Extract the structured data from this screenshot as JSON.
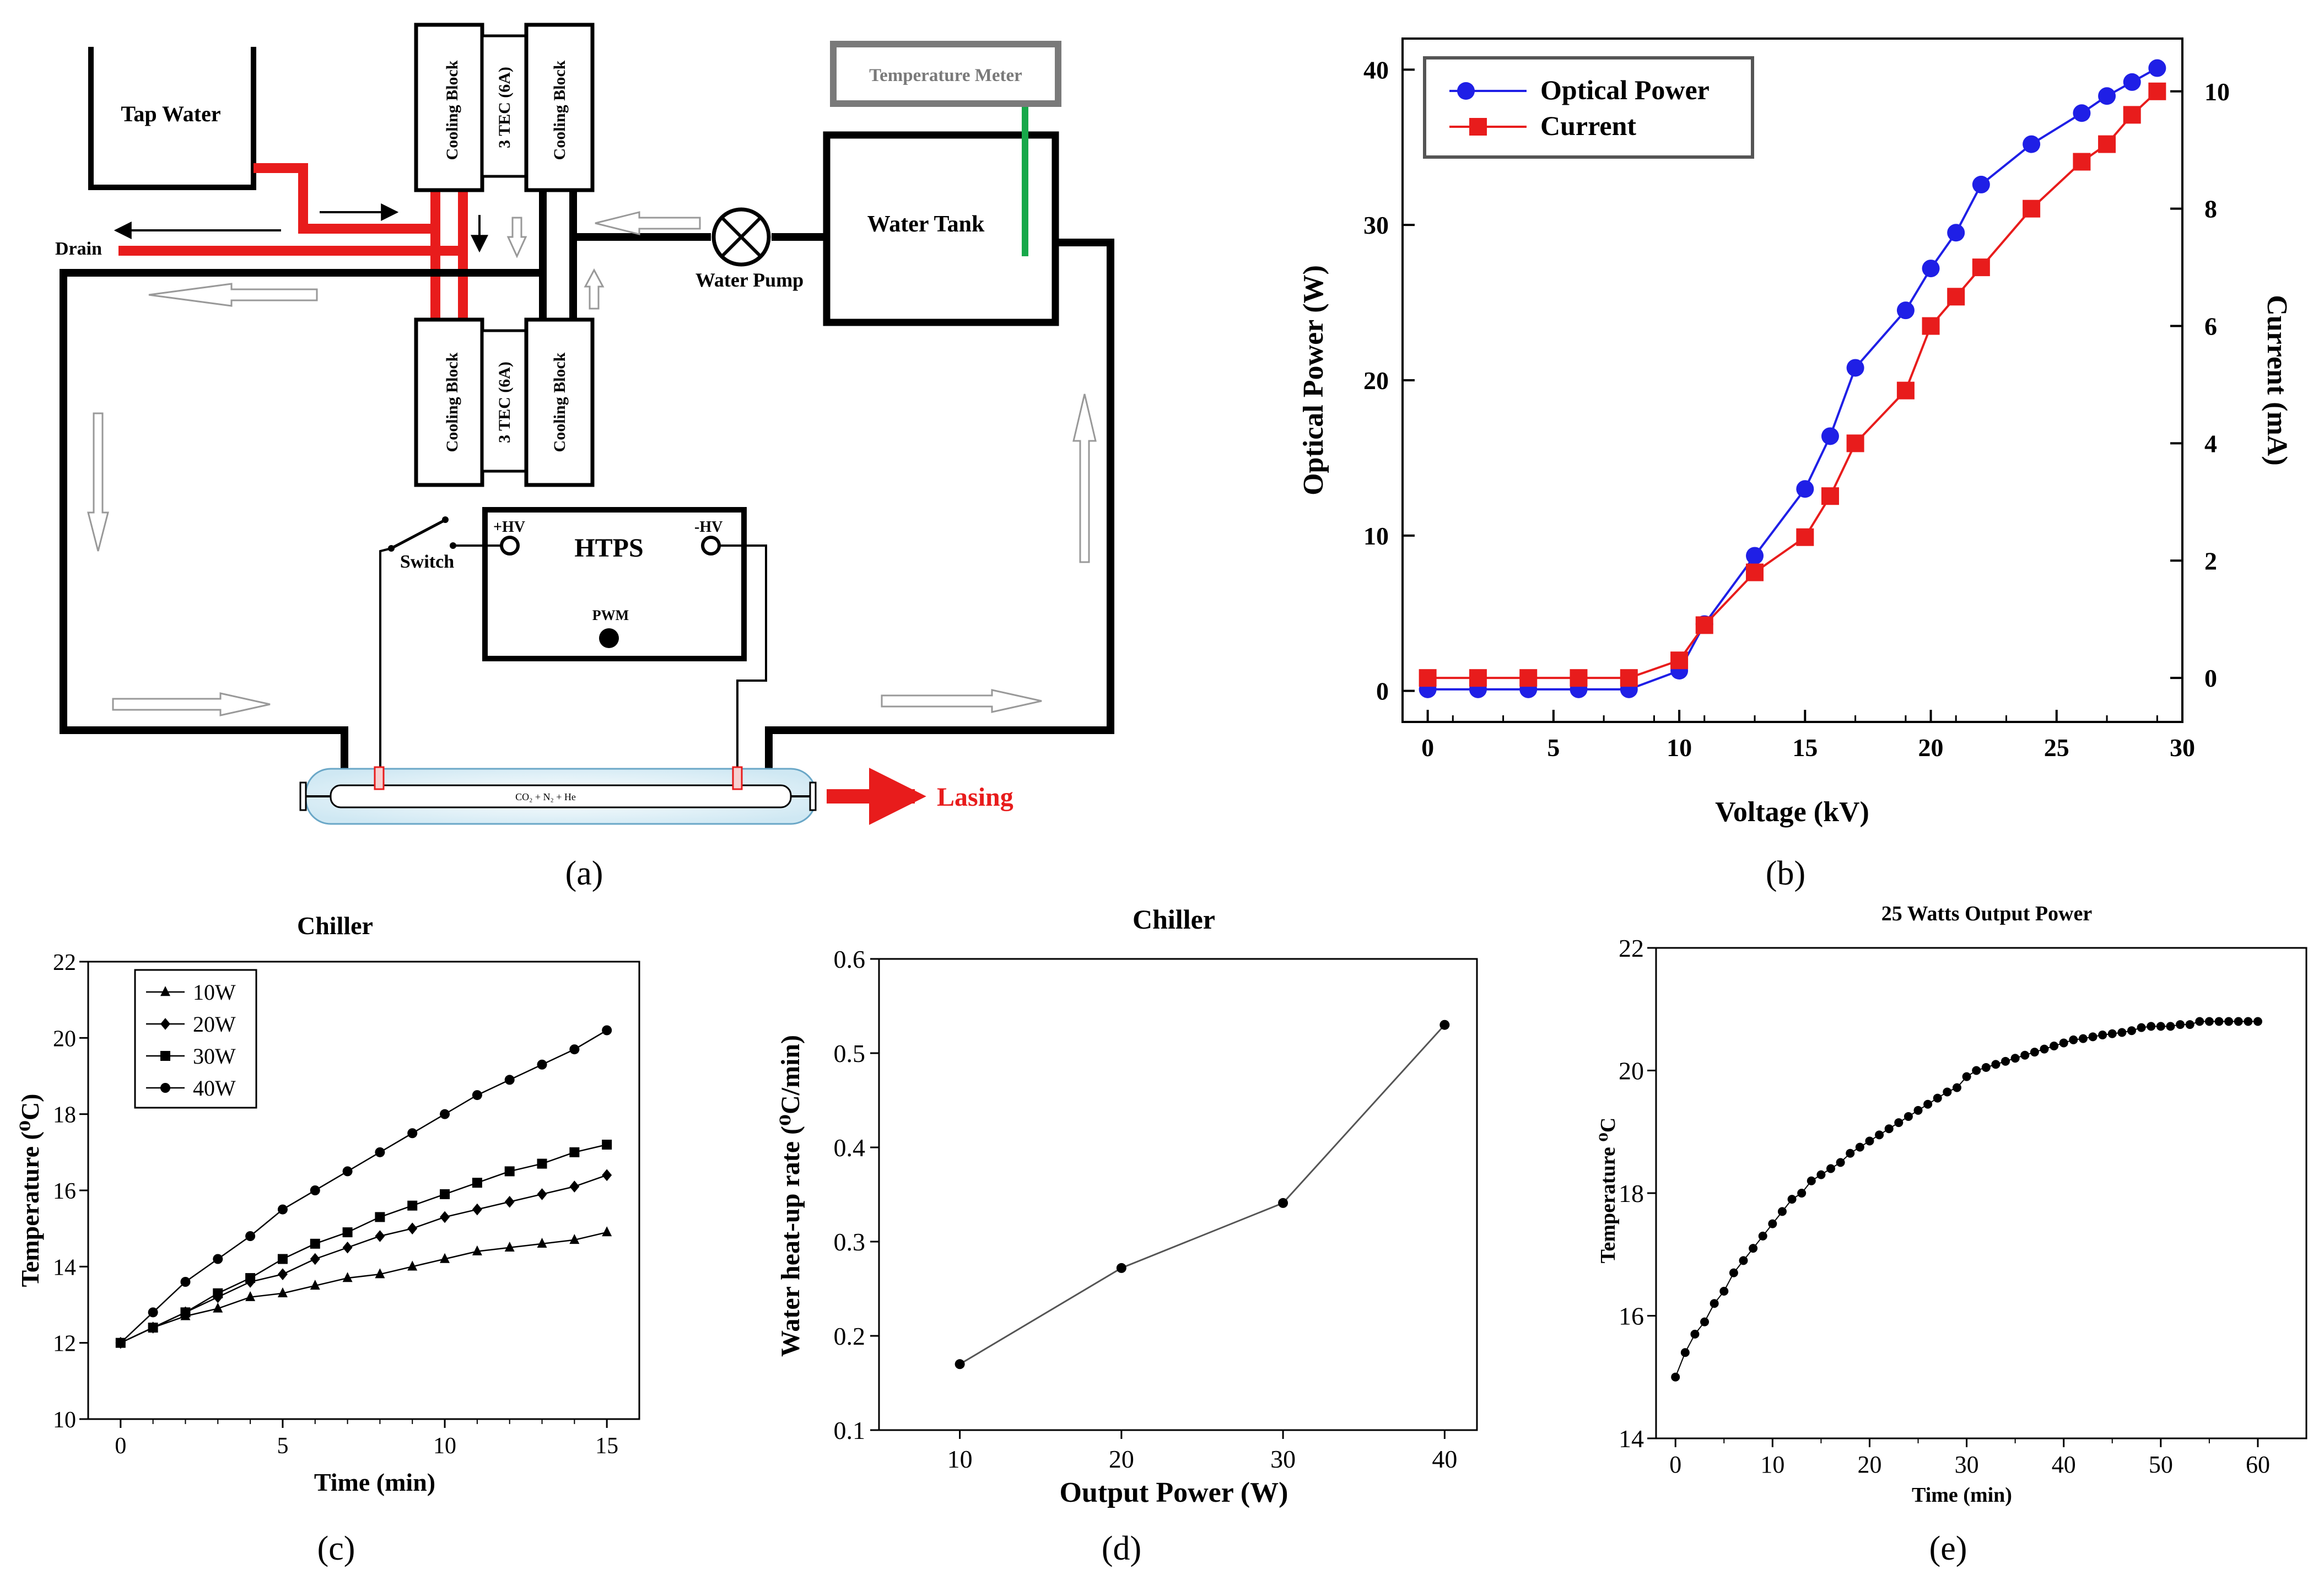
{
  "diagram": {
    "tap_water": "Tap Water",
    "drain": "Drain",
    "cooling_block": "Cooling Block",
    "tec": "3 TEC (6A)",
    "temperature_meter": "Temperature Meter",
    "water_tank": "Water Tank",
    "water_pump": "Water Pump",
    "switch": "Switch",
    "htps": "HTPS",
    "plus_hv": "+HV",
    "minus_hv": "-HV",
    "pwm": "PWM",
    "gas_mix": "CO₂ + N₂ + He",
    "lasing": "Lasing"
  },
  "colors": {
    "blue": "#1f1fe6",
    "red": "#e81c1c",
    "green": "#18a84a",
    "black": "#000000",
    "gray": "#7a7a7a"
  },
  "panel_labels": [
    "(a)",
    "(b)",
    "(c)",
    "(d)",
    "(e)"
  ],
  "chart_data": [
    {
      "id": "b",
      "type": "line",
      "title": "",
      "xlabel": "Voltage (kV)",
      "ylabel": "Optical Power (W)",
      "y2label": "Current (mA)",
      "xlim": [
        -1,
        30
      ],
      "ylim": [
        -2,
        42
      ],
      "y2lim": [
        -0.75,
        10.9
      ],
      "xticks": [
        0,
        5,
        10,
        15,
        20,
        25,
        30
      ],
      "yticks": [
        0,
        10,
        20,
        30,
        40
      ],
      "y2ticks": [
        0,
        2,
        4,
        6,
        8,
        10
      ],
      "legend": "top-left",
      "series": [
        {
          "name": "Optical Power",
          "axis": "left",
          "color": "#1f1fe6",
          "marker": "circle",
          "x": [
            0,
            2,
            4,
            6,
            8,
            10,
            11,
            13,
            15,
            16,
            17,
            19,
            20,
            21,
            22,
            24,
            26,
            27,
            28,
            29
          ],
          "y": [
            0.1,
            0.1,
            0.1,
            0.1,
            0.1,
            1.3,
            4.3,
            8.7,
            13.0,
            16.4,
            20.8,
            24.5,
            27.2,
            29.5,
            32.6,
            35.2,
            37.2,
            38.3,
            39.2,
            40.1
          ]
        },
        {
          "name": "Current",
          "axis": "right",
          "color": "#e81c1c",
          "marker": "square",
          "x": [
            0,
            2,
            4,
            6,
            8,
            10,
            11,
            13,
            15,
            16,
            17,
            19,
            20,
            21,
            22,
            24,
            26,
            27,
            28,
            29
          ],
          "y": [
            0.0,
            0.0,
            0.0,
            0.0,
            0.0,
            0.3,
            0.9,
            1.8,
            2.4,
            3.1,
            4.0,
            4.9,
            6.0,
            6.5,
            7.0,
            8.0,
            8.8,
            9.1,
            9.6,
            10.0
          ]
        }
      ]
    },
    {
      "id": "c",
      "type": "line",
      "title": "Chiller",
      "xlabel": "Time (min)",
      "ylabel": "Temperature (⁰C)",
      "xlim": [
        -1,
        16
      ],
      "ylim": [
        10,
        22
      ],
      "xticks": [
        0,
        5,
        10,
        15
      ],
      "yticks": [
        10,
        12,
        14,
        16,
        18,
        20,
        22
      ],
      "legend": "top-left",
      "series": [
        {
          "name": "10W",
          "marker": "triangle",
          "x": [
            0,
            1,
            2,
            3,
            4,
            5,
            6,
            7,
            8,
            9,
            10,
            11,
            12,
            13,
            14,
            15
          ],
          "y": [
            12.0,
            12.4,
            12.7,
            12.9,
            13.2,
            13.3,
            13.5,
            13.7,
            13.8,
            14.0,
            14.2,
            14.4,
            14.5,
            14.6,
            14.7,
            14.9
          ]
        },
        {
          "name": "20W",
          "marker": "diamond",
          "x": [
            0,
            1,
            2,
            3,
            4,
            5,
            6,
            7,
            8,
            9,
            10,
            11,
            12,
            13,
            14,
            15
          ],
          "y": [
            12.0,
            12.4,
            12.8,
            13.2,
            13.6,
            13.8,
            14.2,
            14.5,
            14.8,
            15.0,
            15.3,
            15.5,
            15.7,
            15.9,
            16.1,
            16.4
          ]
        },
        {
          "name": "30W",
          "marker": "square",
          "x": [
            0,
            1,
            2,
            3,
            4,
            5,
            6,
            7,
            8,
            9,
            10,
            11,
            12,
            13,
            14,
            15
          ],
          "y": [
            12.0,
            12.4,
            12.8,
            13.3,
            13.7,
            14.2,
            14.6,
            14.9,
            15.3,
            15.6,
            15.9,
            16.2,
            16.5,
            16.7,
            17.0,
            17.2
          ]
        },
        {
          "name": "40W",
          "marker": "circle",
          "x": [
            0,
            1,
            2,
            3,
            4,
            5,
            6,
            7,
            8,
            9,
            10,
            11,
            12,
            13,
            14,
            15
          ],
          "y": [
            12.0,
            12.8,
            13.6,
            14.2,
            14.8,
            15.5,
            16.0,
            16.5,
            17.0,
            17.5,
            18.0,
            18.5,
            18.9,
            19.3,
            19.7,
            20.2
          ]
        }
      ]
    },
    {
      "id": "d",
      "type": "line",
      "title": "Chiller",
      "xlabel": "Output Power (W)",
      "ylabel": "Water heat-up rate (⁰C/min)",
      "xlim": [
        5,
        42
      ],
      "ylim": [
        0.1,
        0.6
      ],
      "xticks": [
        10,
        20,
        30,
        40
      ],
      "yticks": [
        0.1,
        0.2,
        0.3,
        0.4,
        0.5,
        0.6
      ],
      "series": [
        {
          "name": "heat-up rate",
          "marker": "circle",
          "x": [
            10,
            20,
            30,
            40
          ],
          "y": [
            0.17,
            0.272,
            0.341,
            0.53
          ]
        }
      ]
    },
    {
      "id": "e",
      "type": "scatter",
      "title": "25 Watts Output Power",
      "xlabel": "Time (min)",
      "ylabel": "Temperature ⁰C",
      "xlim": [
        -2,
        65
      ],
      "ylim": [
        14,
        22
      ],
      "xticks": [
        0,
        10,
        20,
        30,
        40,
        50,
        60
      ],
      "yticks": [
        14,
        16,
        18,
        20,
        22
      ],
      "series": [
        {
          "name": "temperature",
          "marker": "circle",
          "x": [
            0,
            1,
            2,
            3,
            4,
            5,
            6,
            7,
            8,
            9,
            10,
            11,
            12,
            13,
            14,
            15,
            16,
            17,
            18,
            19,
            20,
            21,
            22,
            23,
            24,
            25,
            26,
            27,
            28,
            29,
            30,
            31,
            32,
            33,
            34,
            35,
            36,
            37,
            38,
            39,
            40,
            41,
            42,
            43,
            44,
            45,
            46,
            47,
            48,
            49,
            50,
            51,
            52,
            53,
            54,
            55,
            56,
            57,
            58,
            59,
            60
          ],
          "y": [
            15.0,
            15.4,
            15.7,
            15.9,
            16.2,
            16.4,
            16.7,
            16.9,
            17.1,
            17.3,
            17.5,
            17.7,
            17.9,
            18.0,
            18.2,
            18.3,
            18.4,
            18.5,
            18.65,
            18.75,
            18.85,
            18.95,
            19.05,
            19.15,
            19.25,
            19.35,
            19.45,
            19.55,
            19.65,
            19.72,
            19.9,
            20.0,
            20.05,
            20.1,
            20.15,
            20.2,
            20.25,
            20.3,
            20.35,
            20.4,
            20.45,
            20.5,
            20.52,
            20.55,
            20.58,
            20.6,
            20.62,
            20.65,
            20.7,
            20.72,
            20.72,
            20.72,
            20.75,
            20.75,
            20.8,
            20.8,
            20.8,
            20.8,
            20.8,
            20.8,
            20.8
          ]
        }
      ]
    }
  ]
}
